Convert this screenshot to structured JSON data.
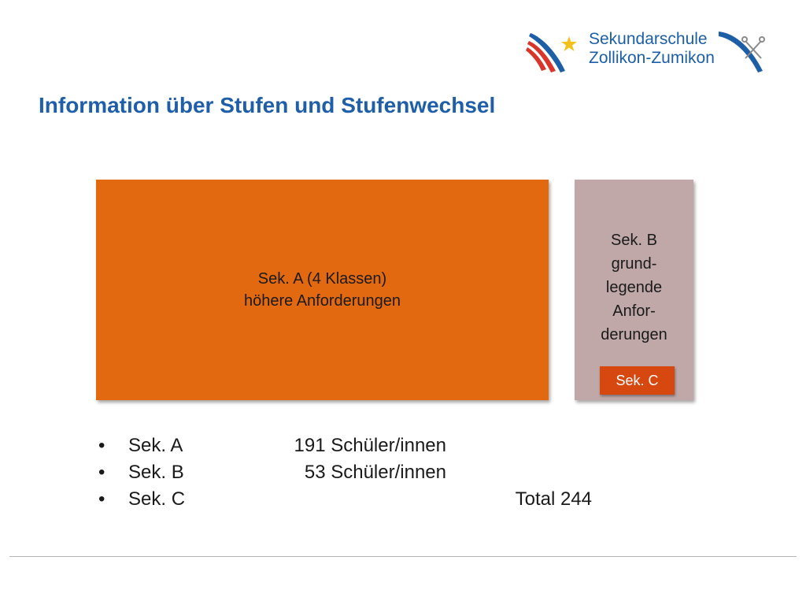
{
  "logo": {
    "line1": "Sekundarschule",
    "line2": "Zollikon-Zumikon",
    "brand_blue": "#1d5fa7",
    "brand_red": "#d9352b",
    "star_color": "#f2c21b"
  },
  "title": "Information über Stufen und Stufenwechsel",
  "diagram": {
    "sek_a": {
      "line1": "Sek.  A (4 Klassen)",
      "line2": "höhere Anforderungen",
      "color": "#e2690f"
    },
    "sek_b": {
      "lines": [
        "Sek. B",
        "grund-",
        "legende",
        "Anfor-",
        "derungen"
      ],
      "color": "#c0a8a8"
    },
    "sek_c": {
      "label": "Sek. C",
      "color": "#d6480f"
    }
  },
  "stats": {
    "bullet": "•",
    "rows": [
      {
        "level": "Sek. A",
        "count": "191 Schüler/innen",
        "total": ""
      },
      {
        "level": "Sek. B",
        "count": "53 Schüler/innen",
        "total": ""
      },
      {
        "level": "Sek. C",
        "count": "",
        "total": "Total 244"
      }
    ]
  }
}
